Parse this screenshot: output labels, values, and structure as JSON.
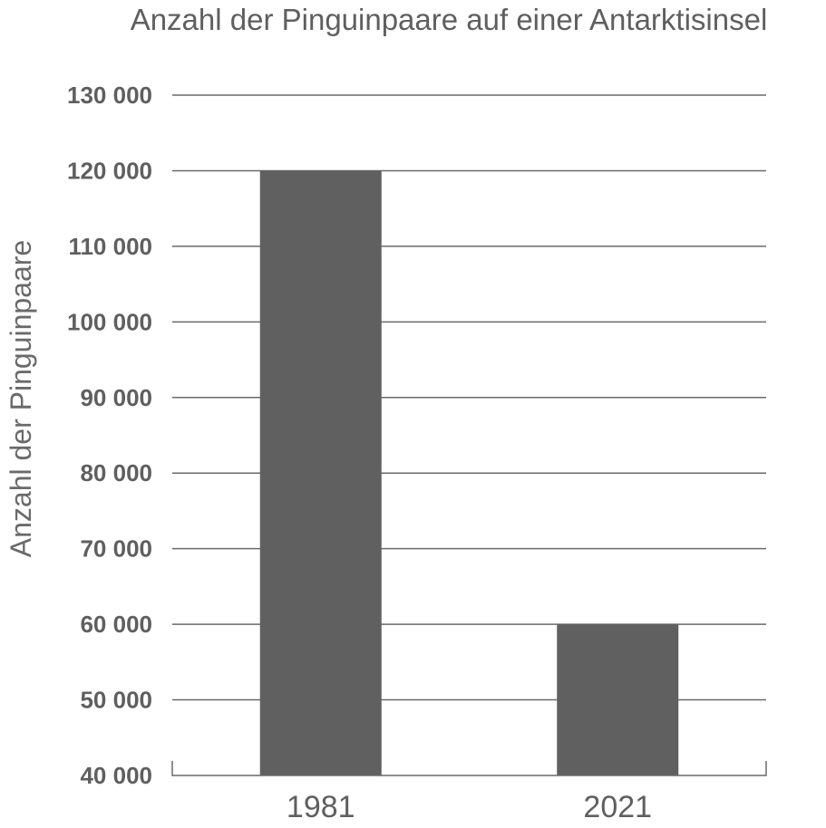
{
  "chart_data": {
    "type": "bar",
    "title": "Anzahl der Pinguinpaare auf einer Antarktisinsel",
    "xlabel": "",
    "ylabel": "Anzahl der Pinguinpaare",
    "categories": [
      "1981",
      "2021"
    ],
    "values": [
      120000,
      60000
    ],
    "ylim": [
      40000,
      130000
    ],
    "yticks": [
      40000,
      50000,
      60000,
      70000,
      80000,
      90000,
      100000,
      110000,
      120000,
      130000
    ],
    "ytick_labels": [
      "40 000",
      "50 000",
      "60 000",
      "70 000",
      "80 000",
      "90 000",
      "100 000",
      "110 000",
      "120 000",
      "130 000"
    ],
    "grid": true,
    "legend": "none",
    "bar_color": "#606060"
  }
}
